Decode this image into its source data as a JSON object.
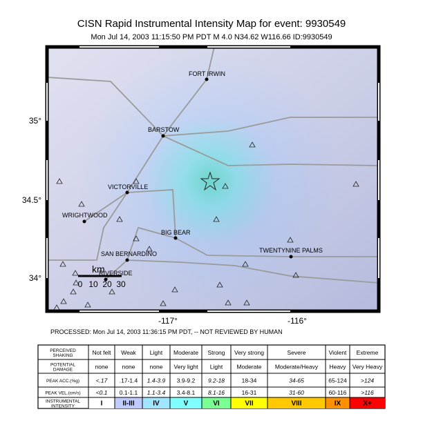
{
  "header": {
    "title": "CISN Rapid Instrumental Intensity Map for event: 9930549",
    "subtitle": "Mon Jul 14, 2003 11:15:50 PM PDT   M 4.0   N34.62 W116.66   ID:9930549"
  },
  "map": {
    "lat_labels": [
      "35°",
      "34.5°",
      "34°"
    ],
    "lon_labels": [
      "-117°",
      "-116°"
    ],
    "places": [
      "FORT IRWIN",
      "BARSTOW",
      "VICTORVILLE",
      "WRIGHTWOOD",
      "BIG BEAR",
      "SAN BERNARDINO",
      "RIVERSIDE",
      "TWENTYNINE PALMS"
    ],
    "scale": {
      "unit": "km",
      "labels": [
        "0",
        "10",
        "20",
        "30"
      ]
    }
  },
  "footer": "PROCESSED: Mon Jul 14, 2003 11:36:15 PM PDT, -- NOT REVIEWED BY HUMAN",
  "legend": {
    "rows": [
      {
        "label": [
          "PERCEIVED",
          "SHAKING"
        ],
        "cells": [
          "Not felt",
          "Weak",
          "Light",
          "Moderate",
          "Strong",
          "Very strong",
          "Severe",
          "Violent",
          "Extreme"
        ]
      },
      {
        "label": [
          "POTENTIAL",
          "DAMAGE"
        ],
        "cells": [
          "none",
          "none",
          "none",
          "Very light",
          "Light",
          "Moderate",
          "Moderate/Heavy",
          "Heavy",
          "Very Heavy"
        ]
      },
      {
        "label": [
          "PEAK ACC.(%g)"
        ],
        "cells": [
          "<.17",
          ".17-1.4",
          "1.4-3.9",
          "3.9-9.2",
          "9.2-18",
          "18-34",
          "34-65",
          "65-124",
          ">124"
        ]
      },
      {
        "label": [
          "PEAK VEL.(cm/s)"
        ],
        "cells": [
          "<0.1",
          "0.1-1.1",
          "1.1-3.4",
          "3.4-8.1",
          "8.1-16",
          "16-31",
          "31-60",
          "60-116",
          ">116"
        ]
      },
      {
        "label": [
          "INSTRUMENTAL",
          "INTENSITY"
        ],
        "cells": [
          "I",
          "II-III",
          "IV",
          "V",
          "VI",
          "VII",
          "VIII",
          "IX",
          "X+"
        ]
      }
    ]
  }
}
